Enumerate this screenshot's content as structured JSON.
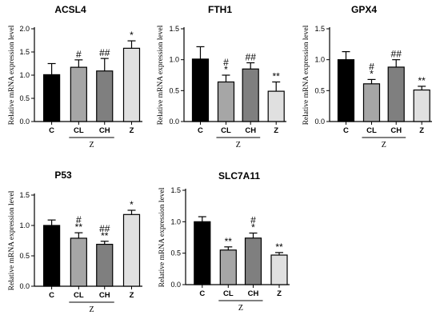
{
  "chart_data": [
    {
      "type": "bar",
      "title": "ACSL4",
      "ylabel": "Relative mRNA expression level",
      "categories": [
        "C",
        "CL",
        "CH",
        "Z"
      ],
      "group_label": "Z",
      "values": [
        1.01,
        1.17,
        1.09,
        1.58
      ],
      "errors": [
        0.24,
        0.16,
        0.27,
        0.16
      ],
      "annotations": [
        [],
        [
          "#"
        ],
        [
          "##"
        ],
        [
          "*"
        ]
      ],
      "ylim": [
        0,
        2.0
      ],
      "yticks": [
        "0.0",
        "0.5",
        "1.0",
        "1.5",
        "2.0"
      ],
      "bar_colors": [
        "#000000",
        "#a6a6a6",
        "#7f7f7f",
        "#e0e0e0"
      ]
    },
    {
      "type": "bar",
      "title": "FTH1",
      "ylabel": "Relative mRNA expression level",
      "categories": [
        "C",
        "CL",
        "CH",
        "Z"
      ],
      "group_label": "Z",
      "values": [
        1.01,
        0.64,
        0.85,
        0.49
      ],
      "errors": [
        0.2,
        0.11,
        0.1,
        0.15
      ],
      "annotations": [
        [],
        [
          "#",
          "*"
        ],
        [
          "##"
        ],
        [
          "**"
        ]
      ],
      "ylim": [
        0,
        1.5
      ],
      "yticks": [
        "0.0",
        "0.5",
        "1.0",
        "1.5"
      ],
      "bar_colors": [
        "#000000",
        "#a6a6a6",
        "#7f7f7f",
        "#e0e0e0"
      ]
    },
    {
      "type": "bar",
      "title": "GPX4",
      "ylabel": "Relative mRNA expression level",
      "categories": [
        "C",
        "CL",
        "CH",
        "Z"
      ],
      "group_label": "Z",
      "values": [
        1.0,
        0.61,
        0.88,
        0.51
      ],
      "errors": [
        0.13,
        0.07,
        0.12,
        0.06
      ],
      "annotations": [
        [],
        [
          "#",
          "*"
        ],
        [
          "##"
        ],
        [
          "**"
        ]
      ],
      "ylim": [
        0,
        1.5
      ],
      "yticks": [
        "0.0",
        "0.5",
        "1.0",
        "1.5"
      ],
      "bar_colors": [
        "#000000",
        "#a6a6a6",
        "#7f7f7f",
        "#e0e0e0"
      ]
    },
    {
      "type": "bar",
      "title": "P53",
      "ylabel": "Relative mRNA expression level",
      "categories": [
        "C",
        "CL",
        "CH",
        "Z"
      ],
      "group_label": "Z",
      "values": [
        1.0,
        0.79,
        0.69,
        1.18
      ],
      "errors": [
        0.09,
        0.09,
        0.05,
        0.07
      ],
      "annotations": [
        [],
        [
          "#",
          "**"
        ],
        [
          "##",
          "**"
        ],
        [
          "*"
        ]
      ],
      "ylim": [
        0,
        1.5
      ],
      "yticks": [
        "0.0",
        "0.5",
        "1.0",
        "1.5"
      ],
      "bar_colors": [
        "#000000",
        "#a6a6a6",
        "#7f7f7f",
        "#e0e0e0"
      ]
    },
    {
      "type": "bar",
      "title": "SLC7A11",
      "ylabel": "Relative mRNA expression level",
      "categories": [
        "C",
        "CL",
        "CH",
        "Z"
      ],
      "group_label": "Z",
      "values": [
        1.0,
        0.55,
        0.74,
        0.47
      ],
      "errors": [
        0.08,
        0.05,
        0.08,
        0.04
      ],
      "annotations": [
        [],
        [
          "**"
        ],
        [
          "#",
          "*"
        ],
        [
          "**"
        ]
      ],
      "ylim": [
        0,
        1.5
      ],
      "yticks": [
        "0.0",
        "0.5",
        "1.0",
        "1.5"
      ],
      "bar_colors": [
        "#000000",
        "#a6a6a6",
        "#7f7f7f",
        "#e0e0e0"
      ]
    }
  ]
}
